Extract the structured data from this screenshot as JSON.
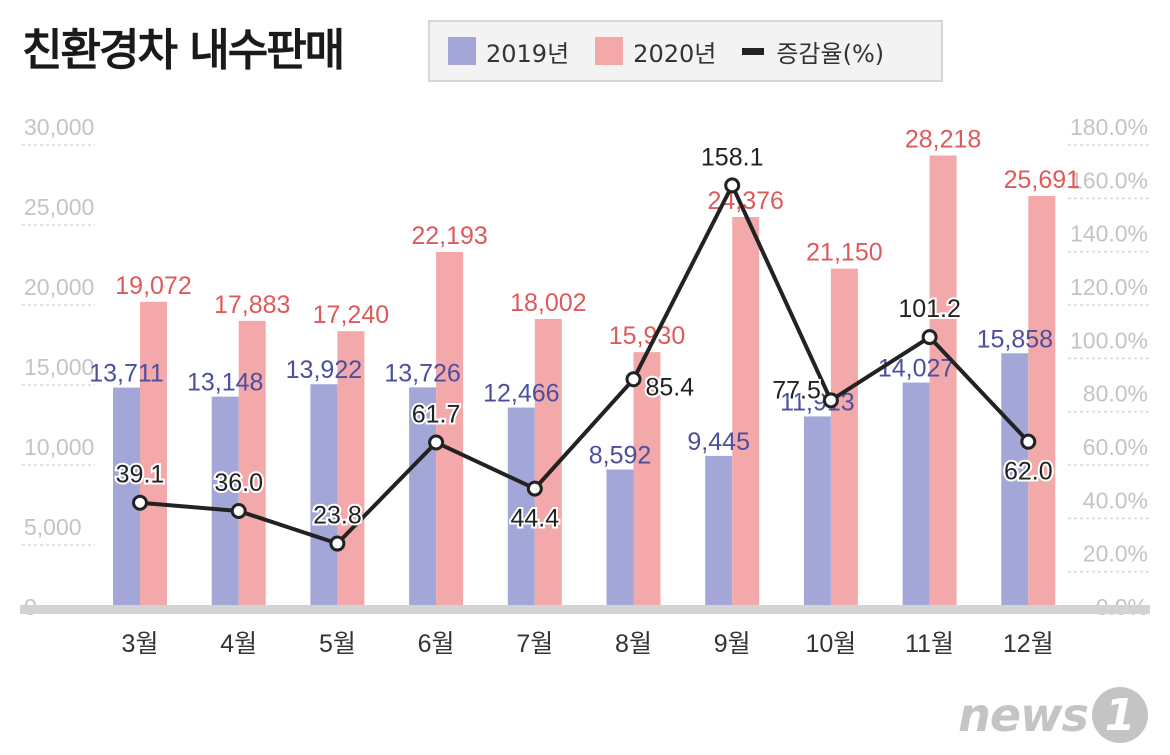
{
  "title": "친환경차 내수판매",
  "legend": {
    "items": [
      {
        "label": "2019년",
        "color": "#a3a7d8",
        "kind": "bar"
      },
      {
        "label": "2020년",
        "color": "#f3a9aa",
        "kind": "bar"
      },
      {
        "label": "증감율(%)",
        "color": "#222222",
        "kind": "line"
      }
    ]
  },
  "logo": {
    "text": "news",
    "mark": "1"
  },
  "chart_data": {
    "type": "bar",
    "categories": [
      "3월",
      "4월",
      "5월",
      "6월",
      "7월",
      "8월",
      "9월",
      "10월",
      "11월",
      "12월"
    ],
    "series": [
      {
        "name": "2019년",
        "type": "bar",
        "axis": "left",
        "color": "#a3a7d8",
        "label_color": "#4b4f9e",
        "values": [
          13711,
          13148,
          13922,
          13726,
          12466,
          8592,
          9445,
          11913,
          14027,
          15858
        ],
        "labels": [
          "13,711",
          "13,148",
          "13,922",
          "13,726",
          "12,466",
          "8,592",
          "9,445",
          "11,913",
          "14,027",
          "15,858"
        ]
      },
      {
        "name": "2020년",
        "type": "bar",
        "axis": "left",
        "color": "#f3a9aa",
        "label_color": "#e0595a",
        "values": [
          19072,
          17883,
          17240,
          22193,
          18002,
          15930,
          24376,
          21150,
          28218,
          25691
        ],
        "labels": [
          "19,072",
          "17,883",
          "17,240",
          "22,193",
          "18,002",
          "15,930",
          "24,376",
          "21,150",
          "28,218",
          "25,691"
        ]
      },
      {
        "name": "증감율(%)",
        "type": "line",
        "axis": "right",
        "color": "#222222",
        "label_color": "#222222",
        "values": [
          39.1,
          36.0,
          23.8,
          61.7,
          44.4,
          85.4,
          158.1,
          77.5,
          101.2,
          62.0
        ],
        "labels": [
          "39.1",
          "36.0",
          "23.8",
          "61.7",
          "44.4",
          "85.4",
          "158.1",
          "77.5",
          "101.2",
          "62.0"
        ]
      }
    ],
    "y_left": {
      "min": 0,
      "max": 30000,
      "ticks": [
        "0",
        "5,000",
        "10,000",
        "15,000",
        "20,000",
        "25,000",
        "30,000"
      ],
      "tick_values": [
        0,
        5000,
        10000,
        15000,
        20000,
        25000,
        30000
      ]
    },
    "y_right": {
      "min": 0,
      "max": 180,
      "ticks": [
        "0.0%",
        "20.0%",
        "40.0%",
        "60.0%",
        "80.0%",
        "100.0%",
        "120.0%",
        "140.0%",
        "160.0%",
        "180.0%"
      ],
      "tick_values": [
        0,
        20,
        40,
        60,
        80,
        100,
        120,
        140,
        160,
        180
      ]
    },
    "grid": true,
    "legend_position": "top"
  }
}
